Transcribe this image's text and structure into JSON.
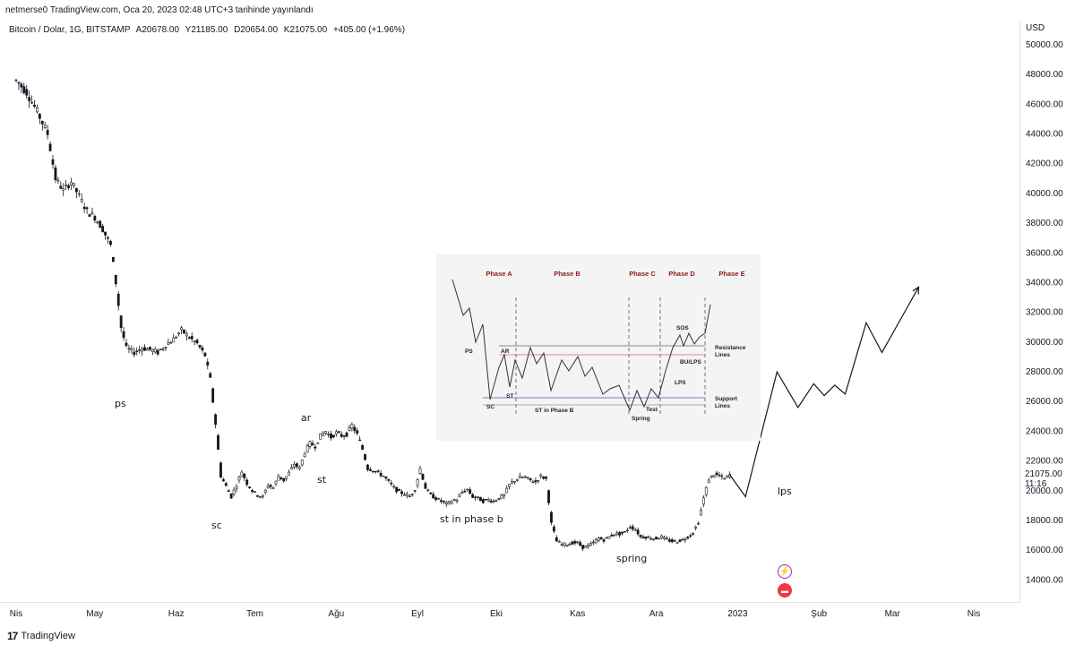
{
  "header": {
    "publish_line": "netmerse0 TradingView.com, Oca 20, 2023 02:48 UTC+3 tarihinde yayınlandı"
  },
  "legend": {
    "symbol": "Bitcoin / Dolar, 1G, BITSTAMP",
    "open": "A20678.00",
    "high": "Y21185.00",
    "low": "D20654.00",
    "close": "K21075.00",
    "change": "+405.00 (+1.96%)"
  },
  "price_axis": {
    "currency": "USD",
    "last_price": "21075.00",
    "countdown": "11:16"
  },
  "footer": {
    "brand": "TradingView",
    "logo": "17"
  },
  "inset": {
    "phases": [
      "Phase A",
      "Phase B",
      "Phase C",
      "Phase D",
      "Phase E"
    ],
    "labels": {
      "ps": "PS",
      "ar": "AR",
      "sc": "SC",
      "st": "ST",
      "st_b": "ST in Phase B",
      "spring": "Spring",
      "test": "Test",
      "sos": "SOS",
      "bu_lps": "BU/LPS",
      "lps": "LPS",
      "resistance": "Resistance",
      "support": "Support",
      "lines": "Lines"
    }
  },
  "annotations": {
    "ps": "ps",
    "sc": "sc",
    "ar": "ar",
    "st": "st",
    "st_b": "st in phase b",
    "spring": "spring",
    "lps": "lps"
  },
  "chart_data": {
    "type": "candlestick",
    "symbol": "Bitcoin / Dolar",
    "interval": "1G",
    "ylim": [
      13000,
      51200
    ],
    "y_ticks": [
      14000,
      16000,
      18000,
      20000,
      22000,
      24000,
      26000,
      28000,
      30000,
      32000,
      34000,
      36000,
      38000,
      40000,
      42000,
      44000,
      46000,
      48000,
      50000
    ],
    "y_tick_labels": [
      "14000.00",
      "16000.00",
      "18000.00",
      "20000.00",
      "22000.00",
      "24000.00",
      "26000.00",
      "28000.00",
      "30000.00",
      "32000.00",
      "34000.00",
      "36000.00",
      "38000.00",
      "40000.00",
      "42000.00",
      "44000.00",
      "46000.00",
      "48000.00",
      "50000.00"
    ],
    "x_ticks": [
      "Nis",
      "May",
      "Haz",
      "Tem",
      "Ağu",
      "Eyl",
      "Eki",
      "Kas",
      "Ara",
      "2023",
      "Şub",
      "Mar",
      "Nis"
    ],
    "x_tick_days": [
      0,
      30,
      61,
      91,
      122,
      153,
      183,
      214,
      244,
      275,
      306,
      334,
      365
    ],
    "price_path": [
      [
        0,
        47600
      ],
      [
        4,
        46800
      ],
      [
        8,
        45500
      ],
      [
        12,
        44000
      ],
      [
        15,
        41000
      ],
      [
        18,
        40200
      ],
      [
        21,
        40800
      ],
      [
        24,
        39800
      ],
      [
        27,
        38800
      ],
      [
        30,
        38400
      ],
      [
        33,
        37600
      ],
      [
        36,
        36500
      ],
      [
        38,
        34000
      ],
      [
        40,
        31000
      ],
      [
        42,
        29600
      ],
      [
        45,
        29300
      ],
      [
        48,
        29600
      ],
      [
        51,
        29500
      ],
      [
        54,
        29300
      ],
      [
        57,
        29800
      ],
      [
        60,
        30200
      ],
      [
        63,
        30800
      ],
      [
        66,
        30300
      ],
      [
        69,
        29900
      ],
      [
        72,
        29100
      ],
      [
        74,
        27500
      ],
      [
        76,
        24500
      ],
      [
        78,
        21000
      ],
      [
        80,
        20300
      ],
      [
        82,
        19600
      ],
      [
        84,
        20400
      ],
      [
        86,
        21300
      ],
      [
        88,
        20500
      ],
      [
        90,
        20000
      ],
      [
        92,
        19700
      ],
      [
        94,
        19600
      ],
      [
        96,
        20400
      ],
      [
        98,
        20200
      ],
      [
        100,
        21000
      ],
      [
        102,
        20700
      ],
      [
        104,
        21200
      ],
      [
        106,
        21800
      ],
      [
        108,
        21500
      ],
      [
        110,
        22600
      ],
      [
        112,
        23200
      ],
      [
        114,
        23000
      ],
      [
        116,
        23700
      ],
      [
        118,
        24000
      ],
      [
        120,
        23600
      ],
      [
        122,
        23900
      ],
      [
        124,
        23700
      ],
      [
        126,
        23800
      ],
      [
        128,
        24400
      ],
      [
        130,
        23800
      ],
      [
        132,
        22800
      ],
      [
        134,
        21500
      ],
      [
        136,
        21400
      ],
      [
        138,
        21200
      ],
      [
        140,
        21000
      ],
      [
        142,
        20600
      ],
      [
        144,
        20200
      ],
      [
        146,
        19900
      ],
      [
        148,
        19800
      ],
      [
        150,
        19600
      ],
      [
        152,
        20100
      ],
      [
        154,
        21500
      ],
      [
        156,
        20200
      ],
      [
        158,
        19700
      ],
      [
        160,
        19500
      ],
      [
        162,
        19300
      ],
      [
        164,
        19100
      ],
      [
        166,
        19300
      ],
      [
        168,
        19400
      ],
      [
        170,
        19900
      ],
      [
        172,
        20100
      ],
      [
        174,
        19600
      ],
      [
        176,
        19500
      ],
      [
        178,
        19300
      ],
      [
        180,
        19400
      ],
      [
        182,
        19300
      ],
      [
        184,
        19500
      ],
      [
        186,
        19700
      ],
      [
        188,
        20400
      ],
      [
        190,
        20700
      ],
      [
        192,
        20900
      ],
      [
        194,
        20900
      ],
      [
        196,
        20700
      ],
      [
        198,
        20600
      ],
      [
        200,
        21000
      ],
      [
        202,
        20800
      ],
      [
        204,
        17800
      ],
      [
        206,
        16600
      ],
      [
        208,
        16400
      ],
      [
        210,
        16400
      ],
      [
        212,
        16500
      ],
      [
        214,
        16500
      ],
      [
        216,
        16200
      ],
      [
        218,
        16300
      ],
      [
        220,
        16500
      ],
      [
        222,
        16800
      ],
      [
        224,
        16700
      ],
      [
        226,
        16900
      ],
      [
        228,
        17100
      ],
      [
        230,
        17100
      ],
      [
        232,
        17200
      ],
      [
        234,
        17600
      ],
      [
        236,
        17400
      ],
      [
        238,
        16900
      ],
      [
        240,
        16900
      ],
      [
        242,
        16800
      ],
      [
        244,
        16800
      ],
      [
        246,
        16900
      ],
      [
        248,
        16700
      ],
      [
        250,
        16600
      ],
      [
        252,
        16600
      ],
      [
        254,
        16700
      ],
      [
        256,
        16900
      ],
      [
        258,
        17200
      ],
      [
        260,
        17900
      ],
      [
        262,
        19500
      ],
      [
        264,
        20800
      ],
      [
        266,
        21100
      ],
      [
        268,
        21000
      ],
      [
        270,
        20800
      ],
      [
        272,
        21075
      ]
    ],
    "last_close": 21075,
    "projection_path": [
      [
        272,
        21075
      ],
      [
        278,
        19600
      ],
      [
        290,
        28000
      ],
      [
        298,
        25600
      ],
      [
        304,
        27200
      ],
      [
        308,
        26400
      ],
      [
        312,
        27100
      ],
      [
        316,
        26500
      ],
      [
        324,
        31300
      ],
      [
        330,
        29300
      ],
      [
        344,
        33700
      ]
    ]
  }
}
